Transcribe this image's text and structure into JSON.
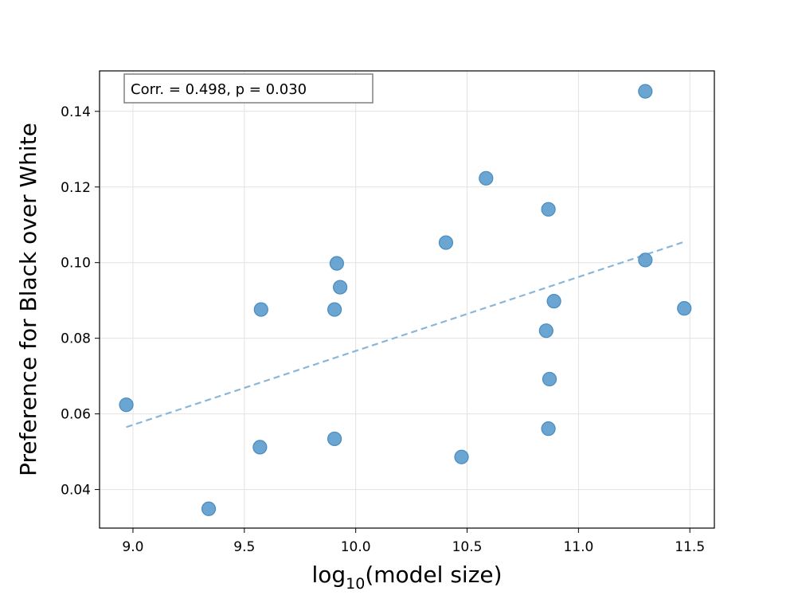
{
  "chart_data": {
    "type": "scatter",
    "title": "",
    "xlabel_base": "log",
    "xlabel_sub": "10",
    "xlabel_rest": "(model size)",
    "ylabel": "Preference for Black over White",
    "xlim": [
      8.85,
      11.61
    ],
    "ylim": [
      0.0298,
      0.1507
    ],
    "xticks": [
      9.0,
      9.5,
      10.0,
      10.5,
      11.0,
      11.5
    ],
    "xtick_labels": [
      "9.0",
      "9.5",
      "10.0",
      "10.5",
      "11.0",
      "11.5"
    ],
    "yticks": [
      0.04,
      0.06,
      0.08,
      0.1,
      0.12,
      0.14
    ],
    "ytick_labels": [
      "0.04",
      "0.06",
      "0.08",
      "0.10",
      "0.12",
      "0.14"
    ],
    "grid": true,
    "annotation": "Corr. = 0.498, p = 0.030",
    "points": [
      {
        "x": 8.97,
        "y": 0.0624
      },
      {
        "x": 9.34,
        "y": 0.0349
      },
      {
        "x": 9.57,
        "y": 0.0512
      },
      {
        "x": 9.575,
        "y": 0.0876
      },
      {
        "x": 9.905,
        "y": 0.0534
      },
      {
        "x": 9.905,
        "y": 0.0876
      },
      {
        "x": 9.915,
        "y": 0.0998
      },
      {
        "x": 9.93,
        "y": 0.0935
      },
      {
        "x": 10.405,
        "y": 0.1053
      },
      {
        "x": 10.475,
        "y": 0.0486
      },
      {
        "x": 10.585,
        "y": 0.1223
      },
      {
        "x": 10.855,
        "y": 0.082
      },
      {
        "x": 10.865,
        "y": 0.1141
      },
      {
        "x": 10.865,
        "y": 0.0561
      },
      {
        "x": 10.87,
        "y": 0.0692
      },
      {
        "x": 10.89,
        "y": 0.0898
      },
      {
        "x": 11.3,
        "y": 0.1453
      },
      {
        "x": 11.3,
        "y": 0.1007
      },
      {
        "x": 11.475,
        "y": 0.0879
      }
    ],
    "trendline": {
      "x": [
        8.97,
        11.475
      ],
      "y": [
        0.0565,
        0.1055
      ]
    },
    "colors": {
      "point_fill": "#5b9bcc",
      "point_stroke": "#4a8cc0",
      "trend": "#8ab6d8",
      "grid": "#e2e2e2"
    }
  }
}
